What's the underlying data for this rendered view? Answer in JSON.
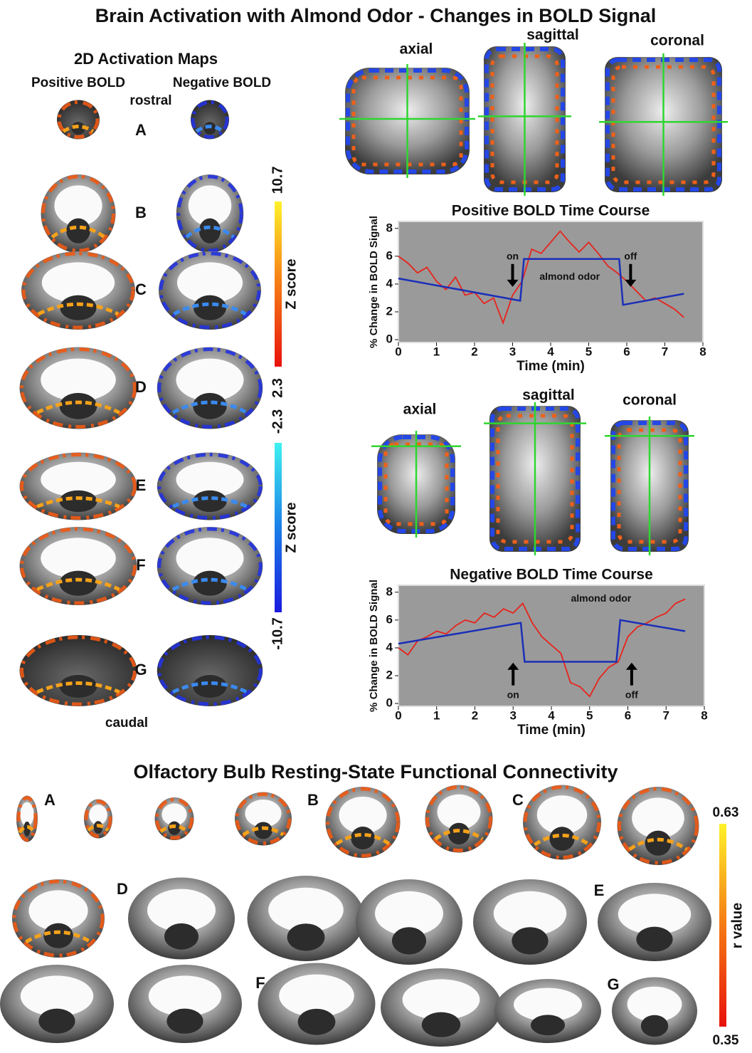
{
  "title": "Brain Activation with Almond Odor - Changes in BOLD Signal",
  "maps": {
    "title": "2D Activation Maps",
    "positive": "Positive BOLD",
    "negative": "Negative BOLD",
    "rostral": "rostral",
    "caudal": "caudal",
    "rows": [
      "A",
      "B",
      "C",
      "D",
      "E",
      "F",
      "G"
    ]
  },
  "colorbars": [
    {
      "label": "Z score",
      "max": 10.7,
      "min": 2.3
    },
    {
      "label": "Z score",
      "max": -2.3,
      "min": -10.7
    }
  ],
  "view_sets": [
    [
      "axial",
      "sagittal",
      "coronal"
    ],
    [
      "axial",
      "sagittal",
      "coronal"
    ]
  ],
  "chart_data": [
    {
      "type": "line",
      "title": "Positive BOLD Time Course",
      "x_label": "Time (min)",
      "y_label": "% Change in BOLD Signal",
      "xlim": [
        0,
        8
      ],
      "ylim": [
        -0.2,
        8.5
      ],
      "xticks": [
        0,
        1,
        2,
        3,
        4,
        5,
        6,
        7,
        8
      ],
      "yticks": [
        0,
        2,
        4,
        6,
        8
      ],
      "background": "#9a9a9a",
      "series": [
        {
          "color": "#e8231c",
          "x": [
            0,
            0.25,
            0.5,
            0.75,
            1,
            1.25,
            1.5,
            1.75,
            2,
            2.25,
            2.5,
            2.75,
            3,
            3.25,
            3.5,
            3.75,
            4,
            4.25,
            4.5,
            4.75,
            5,
            5.25,
            5.5,
            5.75,
            6,
            6.25,
            6.5,
            6.75,
            7,
            7.25,
            7.5
          ],
          "values": [
            6,
            5.5,
            4.8,
            5.2,
            4.2,
            3.6,
            4.5,
            3.2,
            3.4,
            2.6,
            3.0,
            1.2,
            3.2,
            4.2,
            6.5,
            6.2,
            7.0,
            7.8,
            7.0,
            6.3,
            7.0,
            6.2,
            5.3,
            4.8,
            4.2,
            3.5,
            2.8,
            3.0,
            2.6,
            2.2,
            1.6
          ]
        },
        {
          "color": "#1b2fb8",
          "x": [
            0,
            3.2,
            3.3,
            5.8,
            5.9,
            7.5
          ],
          "values": [
            4.4,
            2.8,
            5.8,
            5.8,
            2.5,
            3.3
          ]
        }
      ],
      "annotations": [
        "on",
        "almond odor",
        "off"
      ]
    },
    {
      "type": "line",
      "title": "Negative BOLD Time Course",
      "x_label": "Time (min)",
      "y_label": "% Change in BOLD Signal",
      "xlim": [
        0,
        8
      ],
      "ylim": [
        -0.2,
        8.5
      ],
      "xticks": [
        0,
        1,
        2,
        3,
        4,
        5,
        6,
        7,
        8
      ],
      "yticks": [
        0,
        2,
        4,
        6,
        8
      ],
      "background": "#9a9a9a",
      "series": [
        {
          "color": "#e8231c",
          "x": [
            0,
            0.25,
            0.5,
            0.75,
            1,
            1.25,
            1.5,
            1.75,
            2,
            2.25,
            2.5,
            2.75,
            3,
            3.25,
            3.5,
            3.75,
            4,
            4.25,
            4.5,
            4.75,
            5,
            5.25,
            5.5,
            5.75,
            6,
            6.25,
            6.5,
            6.75,
            7,
            7.25,
            7.5
          ],
          "values": [
            4,
            3.5,
            4.5,
            4.8,
            5.2,
            5.0,
            5.6,
            6.0,
            5.8,
            6.5,
            6.2,
            6.8,
            6.5,
            7.2,
            5.8,
            4.8,
            4.2,
            3.6,
            1.5,
            1.2,
            0.5,
            1.8,
            2.6,
            3.0,
            4.8,
            5.5,
            5.8,
            6.2,
            6.5,
            7.2,
            7.5
          ]
        },
        {
          "color": "#1b2fb8",
          "x": [
            0,
            3.2,
            3.3,
            5.7,
            5.8,
            7.5
          ],
          "values": [
            4.3,
            5.8,
            3.0,
            3.0,
            6.0,
            5.2
          ]
        }
      ],
      "annotations": [
        "almond odor",
        "on",
        "off"
      ]
    }
  ],
  "connectivity": {
    "title": "Olfactory Bulb Resting-State Functional Connectivity",
    "letters": [
      "A",
      "B",
      "C",
      "D",
      "E",
      "F",
      "G"
    ],
    "colorbar": {
      "label": "r value",
      "max": 0.63,
      "min": 0.35
    }
  }
}
